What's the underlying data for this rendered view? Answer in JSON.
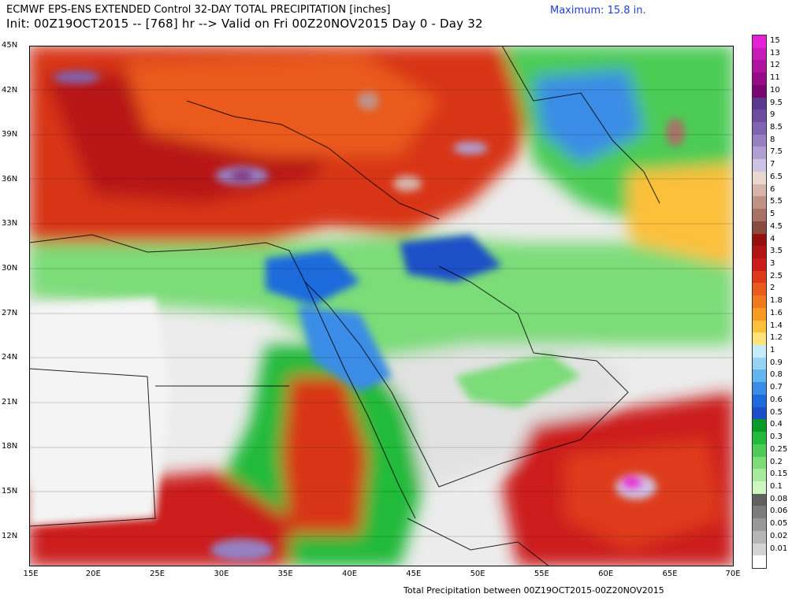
{
  "title_line1": "ECMWF EPS-ENS EXTENDED Control 32-DAY TOTAL PRECIPITATION [inches]",
  "title_line2": "Init: 00Z19OCT2015 -- [768] hr --> Valid on Fri 00Z20NOV2015  Day 0 - Day 32",
  "maximum_label": "Maximum:  15.8 in.",
  "footer": "Total Precipitation between 00Z19OCT2015-00Z20NOV2015",
  "lat_labels": [
    "45N",
    "42N",
    "39N",
    "36N",
    "33N",
    "30N",
    "27N",
    "24N",
    "21N",
    "18N",
    "15N",
    "12N"
  ],
  "lon_labels": [
    "15E",
    "20E",
    "25E",
    "30E",
    "35E",
    "40E",
    "45E",
    "50E",
    "55E",
    "60E",
    "65E",
    "70E"
  ],
  "colorbar": [
    {
      "label": "15",
      "color": "#e620d8"
    },
    {
      "label": "13",
      "color": "#c81ab8"
    },
    {
      "label": "12",
      "color": "#b0139e"
    },
    {
      "label": "11",
      "color": "#960c86"
    },
    {
      "label": "10",
      "color": "#7c0670"
    },
    {
      "label": "9.5",
      "color": "#5b3a8e"
    },
    {
      "label": "9",
      "color": "#6c4ea0"
    },
    {
      "label": "8.5",
      "color": "#8064b2"
    },
    {
      "label": "8",
      "color": "#9680c2"
    },
    {
      "label": "7.5",
      "color": "#b0a0d2"
    },
    {
      "label": "7",
      "color": "#cdc4e4"
    },
    {
      "label": "6.5",
      "color": "#ead7d2"
    },
    {
      "label": "6",
      "color": "#d6b4aa"
    },
    {
      "label": "5.5",
      "color": "#c09286"
    },
    {
      "label": "5",
      "color": "#a67266"
    },
    {
      "label": "4.5",
      "color": "#8a4a3e"
    },
    {
      "label": "4",
      "color": "#960f0f"
    },
    {
      "label": "3.5",
      "color": "#b31414"
    },
    {
      "label": "3",
      "color": "#cc1a1a"
    },
    {
      "label": "2.5",
      "color": "#de3a1a"
    },
    {
      "label": "2",
      "color": "#ea5a1a"
    },
    {
      "label": "1.8",
      "color": "#f2781e"
    },
    {
      "label": "1.6",
      "color": "#f89a22"
    },
    {
      "label": "1.4",
      "color": "#fcc03a"
    },
    {
      "label": "1.2",
      "color": "#ffe27a"
    },
    {
      "label": "1",
      "color": "#c6ecfa"
    },
    {
      "label": "0.9",
      "color": "#96d4f4"
    },
    {
      "label": "0.8",
      "color": "#64b4ee"
    },
    {
      "label": "0.7",
      "color": "#3a8ce6"
    },
    {
      "label": "0.6",
      "color": "#1e6adc"
    },
    {
      "label": "0.5",
      "color": "#1a4fc8"
    },
    {
      "label": "0.4",
      "color": "#0a9a2a"
    },
    {
      "label": "0.3",
      "color": "#22ba3a"
    },
    {
      "label": "0.25",
      "color": "#4ccc54"
    },
    {
      "label": "0.2",
      "color": "#7cdc78"
    },
    {
      "label": "0.15",
      "color": "#a6ea9c"
    },
    {
      "label": "0.1",
      "color": "#cdf6c2"
    },
    {
      "label": "0.08",
      "color": "#606060"
    },
    {
      "label": "0.06",
      "color": "#7c7c7c"
    },
    {
      "label": "0.05",
      "color": "#989898"
    },
    {
      "label": "0.02",
      "color": "#b6b6b6"
    },
    {
      "label": "0.01",
      "color": "#d4d4d4"
    },
    {
      "label": "",
      "color": "#ffffff"
    }
  ]
}
